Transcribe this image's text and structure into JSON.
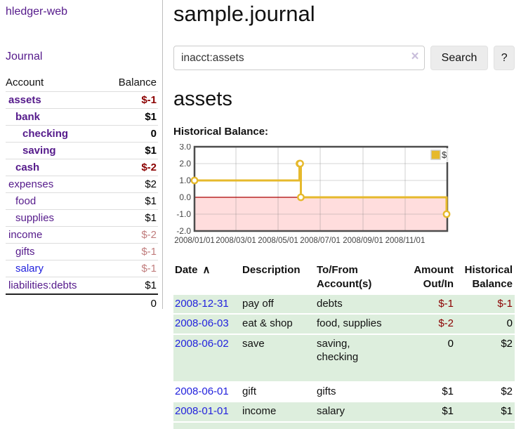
{
  "app": {
    "title": "hledger-web"
  },
  "sidebar": {
    "nav_journal": "Journal",
    "table_headers": {
      "account": "Account",
      "balance": "Balance"
    },
    "accounts": [
      {
        "name": "assets",
        "balance": "$-1",
        "indent": 0,
        "in_account": true
      },
      {
        "name": "bank",
        "balance": "$1",
        "indent": 1,
        "in_account": true
      },
      {
        "name": "checking",
        "balance": "0",
        "indent": 2,
        "in_account": true
      },
      {
        "name": "saving",
        "balance": "$1",
        "indent": 2,
        "in_account": true
      },
      {
        "name": "cash",
        "balance": "$-2",
        "indent": 1,
        "in_account": true
      },
      {
        "name": "expenses",
        "balance": "$2",
        "indent": 0,
        "in_account": false
      },
      {
        "name": "food",
        "balance": "$1",
        "indent": 1,
        "in_account": false
      },
      {
        "name": "supplies",
        "balance": "$1",
        "indent": 1,
        "in_account": false
      },
      {
        "name": "income",
        "balance": "$-2",
        "indent": 0,
        "in_account": false
      },
      {
        "name": "gifts",
        "balance": "$-1",
        "indent": 1,
        "in_account": false
      },
      {
        "name": "salary",
        "balance": "$-1",
        "indent": 1,
        "in_account": false,
        "link_style": "blue"
      },
      {
        "name": "liabilities:debts",
        "balance": "$1",
        "indent": 0,
        "in_account": false
      }
    ],
    "total": "0"
  },
  "main": {
    "title": "sample.journal",
    "search": {
      "value": "inacct:assets",
      "clear_icon": "×",
      "search_button": "Search",
      "help_button": "?"
    },
    "account_heading": "assets",
    "chart_title": "Historical Balance:"
  },
  "chart_data": {
    "type": "line",
    "title": "Historical Balance",
    "step": true,
    "series": [
      {
        "name": "$",
        "color": "#e6b92c",
        "points": [
          [
            "2008-01-01",
            1
          ],
          [
            "2008-06-01",
            2
          ],
          [
            "2008-06-02",
            2
          ],
          [
            "2008-06-03",
            0
          ],
          [
            "2008-12-31",
            -1
          ]
        ]
      }
    ],
    "x_ticks": [
      "2008/01/01",
      "2008/03/01",
      "2008/05/01",
      "2008/07/01",
      "2008/09/01",
      "2008/11/01"
    ],
    "y_ticks": [
      3.0,
      2.0,
      1.0,
      0.0,
      -1.0,
      -2.0
    ],
    "xlim": [
      "2008-01-01",
      "2009-01-01"
    ],
    "ylim": [
      -2,
      3
    ],
    "grid": true,
    "legend_position": "top-right",
    "legend_label": "$",
    "negative_region_color": "#ffdddd",
    "zero_line_color": "#aa0000"
  },
  "register": {
    "headers": {
      "date": "Date",
      "sort_icon": "∧",
      "description": "Description",
      "accounts": "To/From Account(s)",
      "amount": "Amount Out/In",
      "balance": "Historical Balance"
    },
    "rows": [
      {
        "date": "2008-12-31",
        "description": "pay off",
        "accounts": "debts",
        "amount": "$-1",
        "balance": "$-1",
        "shaded": true,
        "tall": false
      },
      {
        "date": "2008-06-03",
        "description": "eat & shop",
        "accounts": "food, supplies",
        "amount": "$-2",
        "balance": "0",
        "shaded": true,
        "tall": false
      },
      {
        "date": "2008-06-02",
        "description": "save",
        "accounts": "saving,\nchecking",
        "amount": "0",
        "balance": "$2",
        "shaded": true,
        "tall": true
      },
      {
        "date": "2008-06-01",
        "description": "gift",
        "accounts": "gifts",
        "amount": "$1",
        "balance": "$2",
        "shaded": false,
        "tall": false
      },
      {
        "date": "2008-01-01",
        "description": "income",
        "accounts": "salary",
        "amount": "$1",
        "balance": "$1",
        "shaded": true,
        "tall": false
      }
    ],
    "partial_row_visible": true
  },
  "colors": {
    "link_purple": "#551a8b",
    "link_blue": "#2222dd",
    "negative_strong": "#8b0000",
    "negative_soft": "#c17d7d",
    "row_green": "#ddeedd",
    "chart_line_gold": "#e6b92c",
    "chart_negative_region": "#ffdddd",
    "chart_zero_line": "#aa0000"
  }
}
